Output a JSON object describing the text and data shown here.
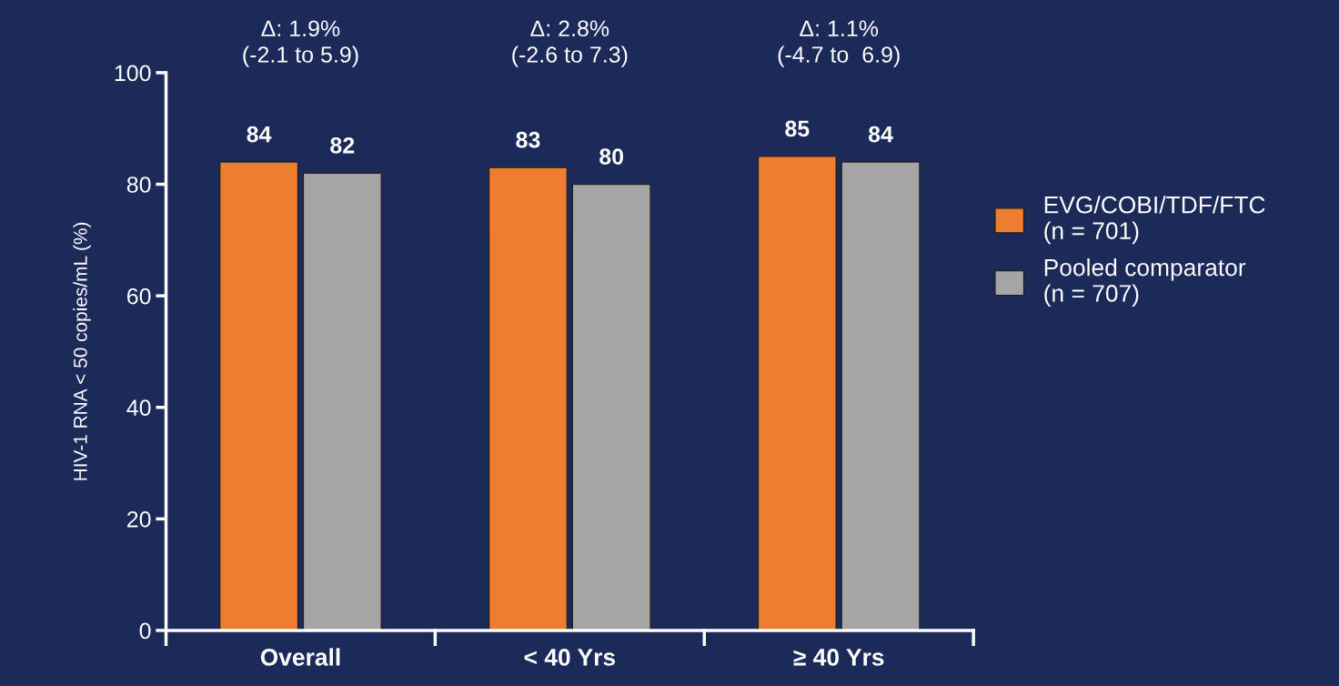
{
  "chart_data": {
    "type": "bar",
    "categories": [
      "Overall",
      "< 40 Yrs",
      "≥ 40 Yrs"
    ],
    "series": [
      {
        "name": "EVG/COBI/TDF/FTC\n(n = 701)",
        "color": "#ed7d31",
        "values": [
          84,
          83,
          85
        ]
      },
      {
        "name": "Pooled comparator\n(n = 707)",
        "color": "#a5a5a5",
        "values": [
          82,
          80,
          84
        ]
      }
    ],
    "ylabel": "HIV-1 RNA < 50 copies/mL (%)",
    "ylim": [
      0,
      100
    ],
    "yticks": [
      0,
      20,
      40,
      60,
      80,
      100
    ],
    "annotations": [
      "Δ: 1.9%\n(-2.1 to 5.9)",
      "Δ: 2.8%\n(-2.6 to 7.3)",
      "Δ: 1.1%\n(-4.7 to  6.9)"
    ],
    "data_labels": true,
    "grid": false,
    "legend": "right"
  }
}
